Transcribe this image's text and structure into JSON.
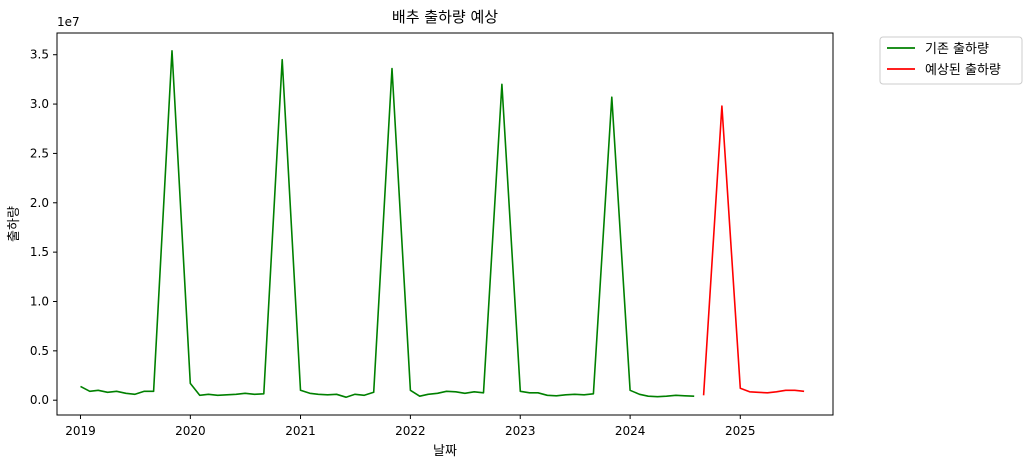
{
  "chart_data": {
    "type": "line",
    "title": "배추 출하량 예상",
    "xlabel": "날짜",
    "ylabel": "출하량",
    "y_offset_label": "1e7",
    "xlim": [
      "2018-10-15",
      "2025-11-05"
    ],
    "ylim": [
      -0.15,
      3.72
    ],
    "y_scale_multiplier": 10000000,
    "x_ticks": [
      "2019",
      "2020",
      "2021",
      "2022",
      "2023",
      "2024",
      "2025"
    ],
    "y_ticks": [
      "0.0",
      "0.5",
      "1.0",
      "1.5",
      "2.0",
      "2.5",
      "3.0",
      "3.5"
    ],
    "grid": false,
    "legend_position": "outside-top-right",
    "series": [
      {
        "name": "기존 출하량",
        "color": "#008000",
        "points": [
          [
            "2019-01-01",
            0.14
          ],
          [
            "2019-02-01",
            0.09
          ],
          [
            "2019-03-01",
            0.1
          ],
          [
            "2019-04-01",
            0.08
          ],
          [
            "2019-05-01",
            0.09
          ],
          [
            "2019-06-01",
            0.07
          ],
          [
            "2019-07-01",
            0.06
          ],
          [
            "2019-08-01",
            0.09
          ],
          [
            "2019-09-01",
            0.09
          ],
          [
            "2019-11-01",
            3.54
          ],
          [
            "2020-01-01",
            0.17
          ],
          [
            "2020-02-01",
            0.05
          ],
          [
            "2020-03-01",
            0.06
          ],
          [
            "2020-04-01",
            0.05
          ],
          [
            "2020-05-01",
            0.055
          ],
          [
            "2020-06-01",
            0.06
          ],
          [
            "2020-07-01",
            0.07
          ],
          [
            "2020-08-01",
            0.06
          ],
          [
            "2020-09-01",
            0.065
          ],
          [
            "2020-11-01",
            3.45
          ],
          [
            "2021-01-01",
            0.1
          ],
          [
            "2021-02-01",
            0.07
          ],
          [
            "2021-03-01",
            0.06
          ],
          [
            "2021-04-01",
            0.055
          ],
          [
            "2021-05-01",
            0.06
          ],
          [
            "2021-06-01",
            0.03
          ],
          [
            "2021-07-01",
            0.06
          ],
          [
            "2021-08-01",
            0.05
          ],
          [
            "2021-09-01",
            0.08
          ],
          [
            "2021-11-01",
            3.36
          ],
          [
            "2022-01-01",
            0.1
          ],
          [
            "2022-02-01",
            0.04
          ],
          [
            "2022-03-01",
            0.06
          ],
          [
            "2022-04-01",
            0.07
          ],
          [
            "2022-05-01",
            0.09
          ],
          [
            "2022-06-01",
            0.085
          ],
          [
            "2022-07-01",
            0.07
          ],
          [
            "2022-08-01",
            0.085
          ],
          [
            "2022-09-01",
            0.075
          ],
          [
            "2022-11-01",
            3.2
          ],
          [
            "2023-01-01",
            0.09
          ],
          [
            "2023-02-01",
            0.075
          ],
          [
            "2023-03-01",
            0.075
          ],
          [
            "2023-04-01",
            0.05
          ],
          [
            "2023-05-01",
            0.045
          ],
          [
            "2023-06-01",
            0.055
          ],
          [
            "2023-07-01",
            0.06
          ],
          [
            "2023-08-01",
            0.055
          ],
          [
            "2023-09-01",
            0.065
          ],
          [
            "2023-11-01",
            3.07
          ],
          [
            "2024-01-01",
            0.1
          ],
          [
            "2024-02-01",
            0.06
          ],
          [
            "2024-03-01",
            0.04
          ],
          [
            "2024-04-01",
            0.035
          ],
          [
            "2024-05-01",
            0.04
          ],
          [
            "2024-06-01",
            0.05
          ],
          [
            "2024-07-01",
            0.045
          ],
          [
            "2024-08-01",
            0.04
          ]
        ]
      },
      {
        "name": "예상된 출하량",
        "color": "#ff0000",
        "points": [
          [
            "2024-09-01",
            0.05
          ],
          [
            "2024-11-01",
            2.98
          ],
          [
            "2025-01-01",
            0.12
          ],
          [
            "2025-02-01",
            0.085
          ],
          [
            "2025-03-01",
            0.08
          ],
          [
            "2025-04-01",
            0.075
          ],
          [
            "2025-05-01",
            0.085
          ],
          [
            "2025-06-01",
            0.1
          ],
          [
            "2025-07-01",
            0.1
          ],
          [
            "2025-08-01",
            0.09
          ]
        ]
      }
    ]
  }
}
